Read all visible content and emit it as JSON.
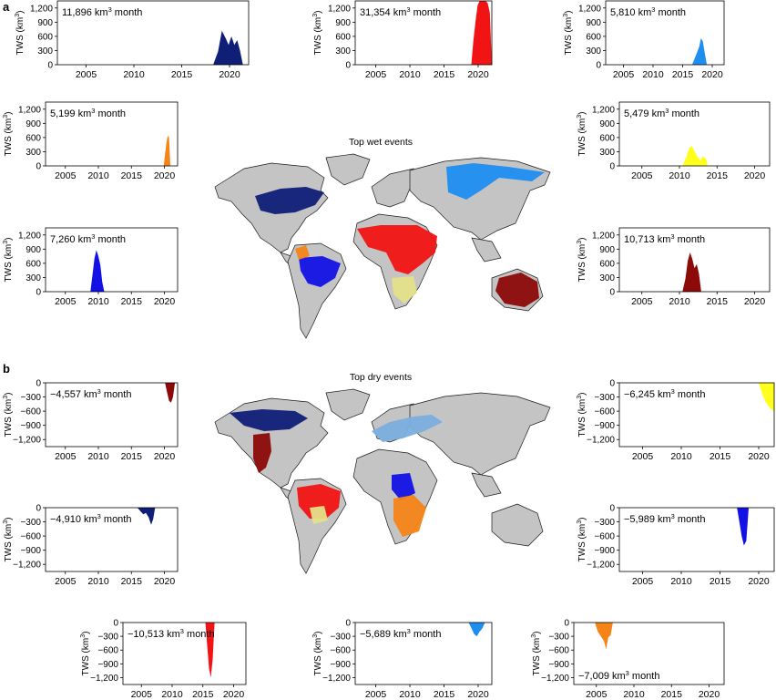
{
  "figure": {
    "panel_a_label": "a",
    "panel_b_label": "b",
    "wet_title": "Top wet events",
    "dry_title": "Top dry events",
    "y_axis_label": "TWS (km",
    "y_axis_sup": "3",
    "y_axis_close": ")",
    "annotation_unit": " km",
    "annotation_sup": "3",
    "annotation_suffix": " month"
  },
  "colors": {
    "land": "#c4c4c4",
    "coast": "#1a1a1a",
    "navy": "#0f1f78",
    "red": "#f21414",
    "skyblue": "#1e8ef0",
    "orange": "#f58418",
    "yellow": "#ffff1e",
    "blue": "#1212e6",
    "darkred": "#8c0a08",
    "lightyellow": "#e4e08a",
    "lightblue": "#7aaede"
  },
  "chart_data": [
    {
      "type": "area",
      "panel": "a",
      "event": "wet",
      "title": "11,896",
      "xticks": [
        2005,
        2010,
        2015,
        2020
      ],
      "xlim": [
        2002,
        2022
      ],
      "yticks": [
        0,
        300,
        600,
        900,
        1200
      ],
      "ylim": [
        0,
        1350
      ],
      "color_key": "navy",
      "x": [
        2018.3,
        2018.8,
        2019.2,
        2019.6,
        2019.9,
        2020.2,
        2020.5,
        2020.8,
        2021.1,
        2021.4
      ],
      "values": [
        0,
        280,
        720,
        560,
        420,
        600,
        420,
        520,
        300,
        0
      ]
    },
    {
      "type": "area",
      "panel": "a",
      "event": "wet",
      "title": "31,354",
      "xticks": [
        2005,
        2010,
        2015,
        2020
      ],
      "xlim": [
        2002,
        2022
      ],
      "yticks": [
        0,
        300,
        600,
        900,
        1200
      ],
      "ylim": [
        0,
        1350
      ],
      "color_key": "red",
      "x": [
        2019.0,
        2019.3,
        2019.6,
        2019.9,
        2020.2,
        2020.5,
        2020.8,
        2021.1,
        2021.4,
        2021.7,
        2022.0
      ],
      "values": [
        0,
        500,
        900,
        1250,
        1380,
        1380,
        1350,
        1380,
        1300,
        1100,
        0
      ]
    },
    {
      "type": "area",
      "panel": "a",
      "event": "wet",
      "title": "5,810",
      "xticks": [
        2005,
        2010,
        2015,
        2020
      ],
      "xlim": [
        2002,
        2022
      ],
      "yticks": [
        0,
        300,
        600,
        900,
        1200
      ],
      "ylim": [
        0,
        1350
      ],
      "color_key": "skyblue",
      "x": [
        2016.6,
        2017.0,
        2017.4,
        2017.8,
        2018.1,
        2018.4,
        2018.8,
        2019.1
      ],
      "values": [
        0,
        120,
        250,
        380,
        560,
        500,
        200,
        0
      ]
    },
    {
      "type": "area",
      "panel": "a",
      "event": "wet",
      "title": "5,199",
      "xticks": [
        2005,
        2010,
        2015,
        2020
      ],
      "xlim": [
        2002,
        2022
      ],
      "yticks": [
        0,
        300,
        600,
        900,
        1200
      ],
      "ylim": [
        0,
        1350
      ],
      "color_key": "orange",
      "x": [
        2019.9,
        2020.1,
        2020.3,
        2020.5,
        2020.7,
        2020.9
      ],
      "values": [
        0,
        250,
        480,
        640,
        600,
        0
      ]
    },
    {
      "type": "area",
      "panel": "a",
      "event": "wet",
      "title": "5,479",
      "xticks": [
        2005,
        2010,
        2015,
        2020
      ],
      "xlim": [
        2002,
        2022
      ],
      "yticks": [
        0,
        300,
        600,
        900,
        1200
      ],
      "ylim": [
        0,
        1350
      ],
      "color_key": "yellow",
      "x": [
        2010.4,
        2010.9,
        2011.3,
        2011.7,
        2012.0,
        2012.4,
        2012.8,
        2013.1,
        2013.5,
        2013.8
      ],
      "values": [
        0,
        180,
        380,
        420,
        300,
        200,
        120,
        200,
        160,
        0
      ]
    },
    {
      "type": "area",
      "panel": "a",
      "event": "wet",
      "title": "7,260",
      "xticks": [
        2005,
        2010,
        2015,
        2020
      ],
      "xlim": [
        2002,
        2022
      ],
      "yticks": [
        0,
        300,
        600,
        900,
        1200
      ],
      "ylim": [
        0,
        1350
      ],
      "color_key": "blue",
      "x": [
        2008.8,
        2009.1,
        2009.4,
        2009.7,
        2010.0,
        2010.3,
        2010.6,
        2010.9
      ],
      "values": [
        0,
        350,
        700,
        880,
        750,
        560,
        200,
        0
      ]
    },
    {
      "type": "area",
      "panel": "a",
      "event": "wet",
      "title": "10,713",
      "xticks": [
        2005,
        2010,
        2015,
        2020
      ],
      "xlim": [
        2002,
        2022
      ],
      "yticks": [
        0,
        300,
        600,
        900,
        1200
      ],
      "ylim": [
        0,
        1350
      ],
      "color_key": "darkred",
      "x": [
        2010.4,
        2010.8,
        2011.1,
        2011.4,
        2011.7,
        2012.0,
        2012.3,
        2012.6,
        2012.9
      ],
      "values": [
        0,
        280,
        650,
        830,
        700,
        500,
        580,
        380,
        0
      ]
    },
    {
      "type": "area",
      "panel": "b",
      "event": "dry",
      "title": "−4,557",
      "xticks": [
        2005,
        2010,
        2015,
        2020
      ],
      "xlim": [
        2002,
        2022
      ],
      "yticks": [
        0,
        -300,
        -600,
        -900,
        -1200
      ],
      "ylim": [
        -1350,
        0
      ],
      "color_key": "darkred",
      "x": [
        2020.1,
        2020.4,
        2020.7,
        2021.0,
        2021.3,
        2021.6
      ],
      "values": [
        0,
        -200,
        -380,
        -420,
        -300,
        0
      ]
    },
    {
      "type": "area",
      "panel": "b",
      "event": "dry",
      "title": "−6,245",
      "xticks": [
        2005,
        2010,
        2015,
        2020
      ],
      "xlim": [
        2002,
        2022
      ],
      "yticks": [
        0,
        -300,
        -600,
        -900,
        -1200
      ],
      "ylim": [
        -1350,
        0
      ],
      "color_key": "yellow",
      "x": [
        2020.0,
        2020.4,
        2020.8,
        2021.2,
        2021.6,
        2022.0
      ],
      "values": [
        0,
        -200,
        -380,
        -480,
        -560,
        -600
      ]
    },
    {
      "type": "area",
      "panel": "b",
      "event": "dry",
      "title": "−4,910",
      "xticks": [
        2005,
        2010,
        2015,
        2020
      ],
      "xlim": [
        2002,
        2022
      ],
      "yticks": [
        0,
        -300,
        -600,
        -900,
        -1200
      ],
      "ylim": [
        -1350,
        0
      ],
      "color_key": "navy",
      "x": [
        2015.9,
        2016.4,
        2016.8,
        2017.2,
        2017.6,
        2018.0,
        2018.3,
        2018.6
      ],
      "values": [
        0,
        -80,
        -140,
        -110,
        -200,
        -360,
        -240,
        0
      ]
    },
    {
      "type": "area",
      "panel": "b",
      "event": "dry",
      "title": "−5,989",
      "xticks": [
        2005,
        2010,
        2015,
        2020
      ],
      "xlim": [
        2002,
        2022
      ],
      "yticks": [
        0,
        -300,
        -600,
        -900,
        -1200
      ],
      "ylim": [
        -1350,
        0
      ],
      "color_key": "blue",
      "x": [
        2017.2,
        2017.5,
        2017.8,
        2018.1,
        2018.4,
        2018.7
      ],
      "values": [
        0,
        -300,
        -600,
        -800,
        -700,
        0
      ]
    },
    {
      "type": "area",
      "panel": "b",
      "event": "dry",
      "title": "−10,513",
      "xticks": [
        2005,
        2010,
        2015,
        2020
      ],
      "xlim": [
        2002,
        2022
      ],
      "yticks": [
        0,
        -300,
        -600,
        -900,
        -1200
      ],
      "ylim": [
        -1350,
        0
      ],
      "color_key": "red",
      "x": [
        2015.4,
        2015.7,
        2016.0,
        2016.3,
        2016.6,
        2016.9
      ],
      "values": [
        0,
        -500,
        -1000,
        -1200,
        -800,
        0
      ]
    },
    {
      "type": "area",
      "panel": "b",
      "event": "dry",
      "title": "−5,689",
      "xticks": [
        2005,
        2010,
        2015,
        2020
      ],
      "xlim": [
        2002,
        2022
      ],
      "yticks": [
        0,
        -300,
        -600,
        -900,
        -1200
      ],
      "ylim": [
        -1350,
        0
      ],
      "color_key": "skyblue",
      "x": [
        2018.6,
        2019.0,
        2019.4,
        2019.8,
        2020.2,
        2020.6,
        2021.0
      ],
      "values": [
        0,
        -120,
        -250,
        -300,
        -200,
        -130,
        0
      ]
    },
    {
      "type": "area",
      "panel": "b",
      "event": "dry",
      "title": "−7,009",
      "xticks": [
        2005,
        2010,
        2015,
        2020
      ],
      "xlim": [
        2002,
        2022
      ],
      "yticks": [
        0,
        -300,
        -600,
        -900,
        -1200
      ],
      "ylim": [
        -1350,
        0
      ],
      "color_key": "orange",
      "x": [
        2004.8,
        2005.2,
        2005.6,
        2006.0,
        2006.3,
        2006.6,
        2006.9,
        2007.2
      ],
      "values": [
        0,
        -200,
        -300,
        -400,
        -580,
        -320,
        -280,
        0
      ]
    }
  ]
}
